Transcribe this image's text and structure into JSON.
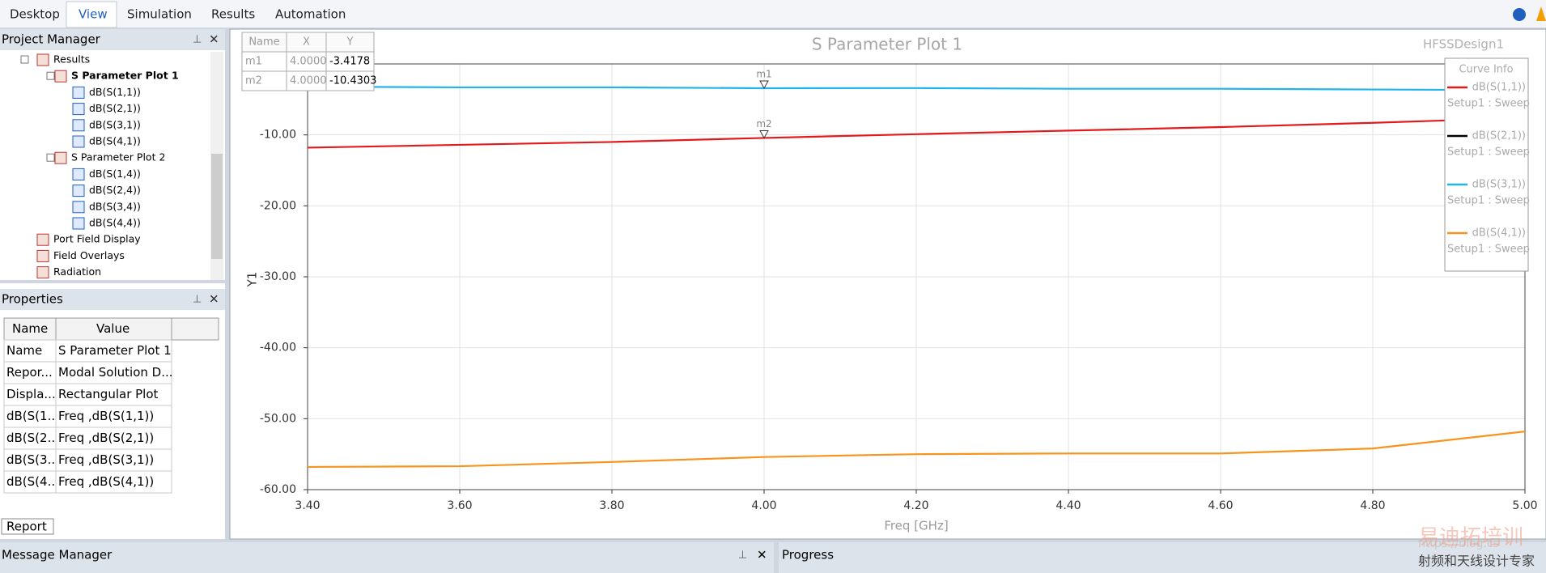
{
  "menu": {
    "tabs": [
      "Desktop",
      "View",
      "Simulation",
      "Results",
      "Automation"
    ],
    "selected": "View"
  },
  "project_manager": {
    "title": "Project Manager",
    "tree": [
      {
        "label": "Results",
        "level": 0
      },
      {
        "label": "S Parameter Plot 1",
        "level": 1,
        "bold": true
      },
      {
        "label": "dB(S(1,1))",
        "level": 2
      },
      {
        "label": "dB(S(2,1))",
        "level": 2
      },
      {
        "label": "dB(S(3,1))",
        "level": 2
      },
      {
        "label": "dB(S(4,1))",
        "level": 2
      },
      {
        "label": "S Parameter Plot 2",
        "level": 1
      },
      {
        "label": "dB(S(1,4))",
        "level": 2
      },
      {
        "label": "dB(S(2,4))",
        "level": 2
      },
      {
        "label": "dB(S(3,4))",
        "level": 2
      },
      {
        "label": "dB(S(4,4))",
        "level": 2
      },
      {
        "label": "Port Field Display",
        "level": 0
      },
      {
        "label": "Field Overlays",
        "level": 0
      },
      {
        "label": "Radiation",
        "level": 0
      }
    ]
  },
  "properties": {
    "title": "Properties",
    "header": [
      "Name",
      "Value"
    ],
    "rows": [
      [
        "Name",
        "S Parameter Plot 1"
      ],
      [
        "Repor...",
        "Modal Solution D..."
      ],
      [
        "Displa...",
        "Rectangular Plot"
      ],
      [
        "dB(S(1...",
        "Freq ,dB(S(1,1))"
      ],
      [
        "dB(S(2...",
        "Freq ,dB(S(2,1))"
      ],
      [
        "dB(S(3...",
        "Freq ,dB(S(3,1))"
      ],
      [
        "dB(S(4...",
        "Freq ,dB(S(4,1))"
      ]
    ],
    "tab": "Report"
  },
  "message_manager": {
    "title": "Message Manager"
  },
  "progress": {
    "title": "Progress"
  },
  "watermark": {
    "url": "https://blog.cs",
    "brand": "易迪拓培训",
    "slogan": "射频和天线设计专家"
  },
  "chart_data": {
    "type": "line",
    "title": "S Parameter Plot 1",
    "design": "HFSSDesign1",
    "xlabel": "Freq [GHz]",
    "ylabel": "Y1",
    "legend_title": "Curve Info",
    "legend": "right",
    "grid": true,
    "x": [
      3.4,
      3.6,
      3.8,
      4.0,
      4.2,
      4.4,
      4.6,
      4.8,
      5.0
    ],
    "series": [
      {
        "name": "dB(S(1,1))",
        "solution": "Setup1 : Sweep",
        "color": "#e31a1c",
        "values": [
          -11.8,
          -11.4,
          -11.0,
          -10.4303,
          -9.9,
          -9.4,
          -8.9,
          -8.3,
          -7.6
        ]
      },
      {
        "name": "dB(S(2,1))",
        "solution": "Setup1 : Sweep",
        "color": "#000000",
        "values": [
          null,
          null,
          null,
          null,
          null,
          null,
          null,
          null,
          null
        ]
      },
      {
        "name": "dB(S(3,1))",
        "solution": "Setup1 : Sweep",
        "color": "#1fb4ea",
        "values": [
          -3.2,
          -3.3,
          -3.3,
          -3.4178,
          -3.4,
          -3.5,
          -3.5,
          -3.6,
          -3.7
        ]
      },
      {
        "name": "dB(S(4,1))",
        "solution": "Setup1 : Sweep",
        "color": "#f7941d",
        "values": [
          -56.8,
          -56.7,
          -56.1,
          -55.4,
          -55.0,
          -54.9,
          -54.9,
          -54.2,
          -51.8
        ]
      }
    ],
    "xlim": [
      3.4,
      5.0
    ],
    "xticks": [
      {
        "value": 3.4,
        "label": "3.40"
      },
      {
        "value": 3.6,
        "label": "3.60"
      },
      {
        "value": 3.8,
        "label": "3.80"
      },
      {
        "value": 4.0,
        "label": "4.00"
      },
      {
        "value": 4.2,
        "label": "4.20"
      },
      {
        "value": 4.4,
        "label": "4.40"
      },
      {
        "value": 4.6,
        "label": "4.60"
      },
      {
        "value": 4.8,
        "label": "4.80"
      },
      {
        "value": 5.0,
        "label": "5.00"
      }
    ],
    "ylim": [
      -60,
      0
    ],
    "yticks": [
      {
        "value": -60,
        "label": "-60.00"
      },
      {
        "value": -50,
        "label": "-50.00"
      },
      {
        "value": -40,
        "label": "-40.00"
      },
      {
        "value": -30,
        "label": "-30.00"
      },
      {
        "value": -20,
        "label": "-20.00"
      },
      {
        "value": -10,
        "label": "-10.00"
      }
    ],
    "marker_table_header": [
      "Name",
      "X",
      "Y"
    ],
    "markers": [
      {
        "name": "m1",
        "x": {
          "value": 4,
          "label": "4.0000"
        },
        "y": -3.4178
      },
      {
        "name": "m2",
        "x": {
          "value": 4,
          "label": "4.0000"
        },
        "y": -10.4303
      }
    ]
  }
}
